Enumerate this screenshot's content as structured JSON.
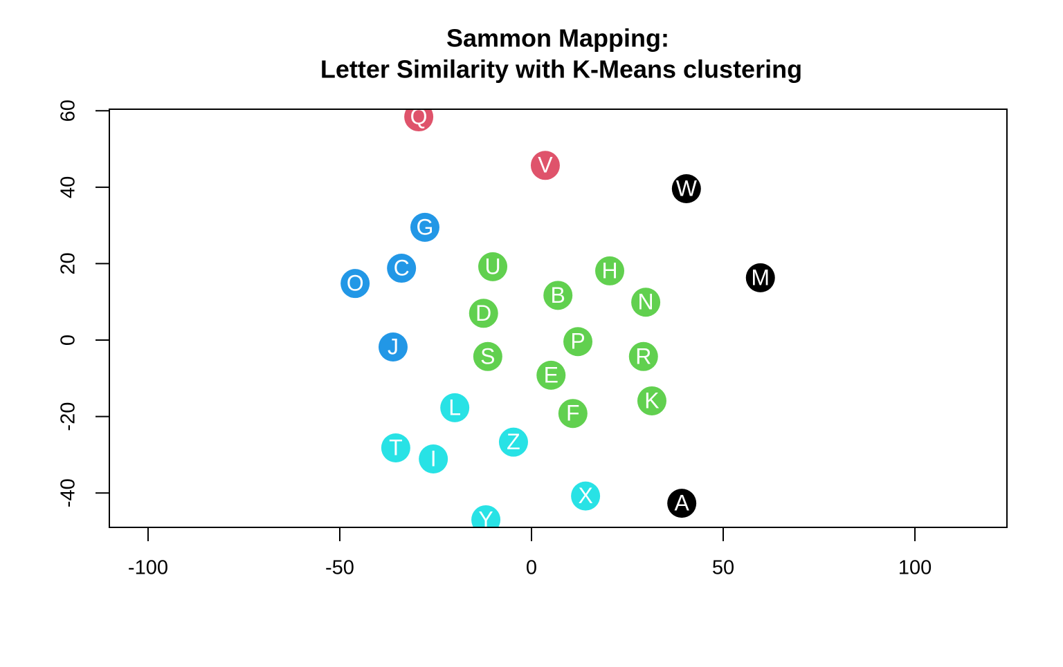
{
  "chart_data": {
    "type": "scatter",
    "title": [
      "Sammon Mapping:",
      "Letter Similarity with K-Means clustering"
    ],
    "xlim": [
      -110.1,
      124.0
    ],
    "ylim": [
      -49.0,
      60.4
    ],
    "xticks": [
      -100,
      -50,
      0,
      50,
      100
    ],
    "yticks": [
      -40,
      -20,
      0,
      20,
      40,
      60
    ],
    "series": [
      {
        "color": "#DF536B",
        "labels": [
          "Q",
          "V"
        ],
        "x": [
          -29.4,
          3.6
        ],
        "values": [
          58.4,
          45.7
        ]
      },
      {
        "color": "#000000",
        "labels": [
          "W",
          "M",
          "A"
        ],
        "x": [
          40.4,
          59.7,
          39.2
        ],
        "values": [
          39.6,
          16.3,
          -42.7
        ]
      },
      {
        "color": "#2297E6",
        "labels": [
          "G",
          "C",
          "O",
          "J"
        ],
        "x": [
          -27.8,
          -33.9,
          -46.0,
          -36.1
        ],
        "values": [
          29.5,
          18.8,
          14.8,
          -1.8
        ]
      },
      {
        "color": "#61D04F",
        "labels": [
          "U",
          "H",
          "B",
          "N",
          "D",
          "P",
          "S",
          "R",
          "E",
          "K",
          "F"
        ],
        "x": [
          -10.1,
          20.4,
          6.9,
          29.8,
          -12.5,
          12.1,
          -11.4,
          29.2,
          5.1,
          31.4,
          10.8
        ],
        "values": [
          19.2,
          18.1,
          11.7,
          9.9,
          7.0,
          -0.4,
          -4.3,
          -4.3,
          -9.2,
          -15.9,
          -19.2
        ]
      },
      {
        "color": "#28E2E5",
        "labels": [
          "L",
          "Z",
          "T",
          "I",
          "X",
          "Y"
        ],
        "x": [
          -20.0,
          -4.7,
          -35.4,
          -25.6,
          14.1,
          -11.9
        ],
        "values": [
          -17.7,
          -26.7,
          -28.2,
          -31.1,
          -40.8,
          -47.0
        ]
      }
    ]
  }
}
